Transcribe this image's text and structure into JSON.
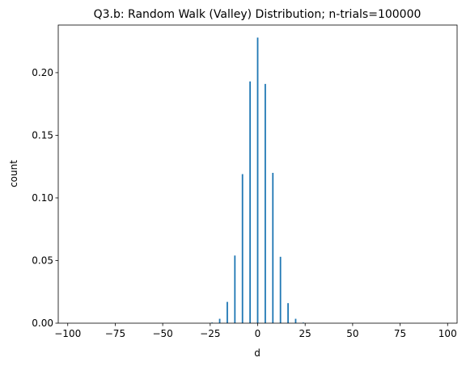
{
  "chart_data": {
    "type": "bar",
    "title": "Q3.b: Random Walk (Valley) Distribution; n-trials=100000",
    "xlabel": "d",
    "ylabel": "count",
    "xlim": [
      -105,
      105
    ],
    "ylim": [
      0,
      0.238
    ],
    "xticks": [
      -100,
      -75,
      -50,
      -25,
      0,
      25,
      50,
      75,
      100
    ],
    "xtick_labels": [
      "−100",
      "−75",
      "−50",
      "−25",
      "0",
      "25",
      "50",
      "75",
      "100"
    ],
    "yticks": [
      0.0,
      0.05,
      0.1,
      0.15,
      0.2
    ],
    "ytick_labels": [
      "0.00",
      "0.05",
      "0.10",
      "0.15",
      "0.20"
    ],
    "grid": false,
    "bar_color": "#1f77b4",
    "x": [
      -24,
      -20,
      -16,
      -12,
      -8,
      -4,
      0,
      4,
      8,
      12,
      16,
      20,
      24
    ],
    "values": [
      0.0005,
      0.0035,
      0.017,
      0.054,
      0.119,
      0.193,
      0.228,
      0.191,
      0.12,
      0.053,
      0.016,
      0.0035,
      0.0005
    ]
  }
}
